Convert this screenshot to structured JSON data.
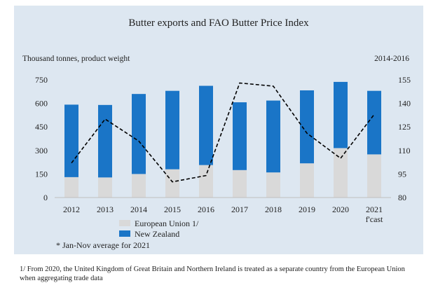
{
  "chart_data": {
    "type": "bar",
    "title": "Butter exports and FAO Butter Price Index",
    "ylabel_left": "Thousand tonnes, product weight",
    "ylabel_right": "2014-2016",
    "categories": [
      "2012",
      "2013",
      "2014",
      "2015",
      "2016",
      "2017",
      "2018",
      "2019",
      "2020",
      "2021"
    ],
    "x_sublabels": [
      "",
      "",
      "",
      "",
      "",
      "",
      "",
      "",
      "",
      "f'cast"
    ],
    "ylim": [
      0,
      750
    ],
    "yticks": [
      "0",
      "150",
      "300",
      "450",
      "600",
      "750"
    ],
    "y2lim": [
      80,
      155
    ],
    "y2ticks": [
      "80",
      "95",
      "110",
      "125",
      "140",
      "155"
    ],
    "series": [
      {
        "name": "European Union 1/",
        "kind": "bar",
        "color": "#d9d9d9",
        "values": [
          130,
          128,
          150,
          180,
          207,
          175,
          160,
          218,
          315,
          275
        ]
      },
      {
        "name": "New Zealand",
        "kind": "bar",
        "color": "#1a75c7",
        "values": [
          462,
          462,
          510,
          500,
          505,
          432,
          458,
          465,
          422,
          405
        ]
      },
      {
        "name": "FAO Butter Price Index",
        "kind": "line",
        "axis": "right",
        "style": "dashed",
        "color": "#000000",
        "values": [
          102,
          130,
          116,
          90,
          94,
          153,
          151,
          121,
          105,
          133
        ]
      }
    ],
    "legend_position": "bottom-left",
    "grid": false,
    "note": "* Jan-Nov average for 2021"
  },
  "footnote": "1/ From 2020, the United Kingdom of Great Britain and Northern Ireland is treated as a separate country from the European Union when aggregating trade data"
}
